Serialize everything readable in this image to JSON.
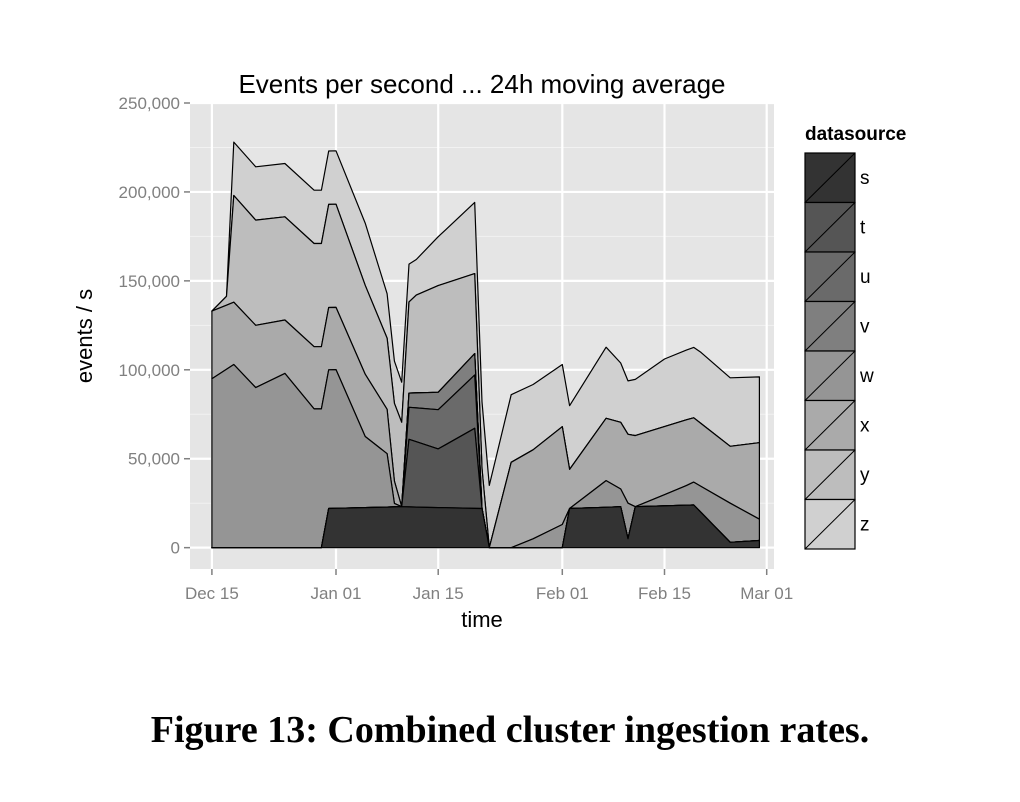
{
  "figure": {
    "caption": "Figure 13: Combined cluster ingestion rates."
  },
  "chart_data": {
    "type": "area",
    "stacked": true,
    "title": "Events per second ... 24h moving average",
    "xlabel": "time",
    "ylabel": "events / s",
    "x_range": [
      "2012-12-12",
      "2013-03-02"
    ],
    "ylim": [
      -12000,
      250000
    ],
    "x_ticks": [
      {
        "date": "2012-12-15",
        "label": "Dec 15"
      },
      {
        "date": "2013-01-01",
        "label": "Jan 01"
      },
      {
        "date": "2013-01-15",
        "label": "Jan 15"
      },
      {
        "date": "2013-02-01",
        "label": "Feb 01"
      },
      {
        "date": "2013-02-15",
        "label": "Feb 15"
      },
      {
        "date": "2013-03-01",
        "label": "Mar 01"
      }
    ],
    "y_ticks": [
      {
        "value": 0,
        "label": "0"
      },
      {
        "value": 50000,
        "label": "50,000"
      },
      {
        "value": 100000,
        "label": "100,000"
      },
      {
        "value": 150000,
        "label": "150,000"
      },
      {
        "value": 200000,
        "label": "200,000"
      },
      {
        "value": 250000,
        "label": "250,000"
      }
    ],
    "grid": true,
    "legend": {
      "title": "datasource",
      "position": "right",
      "entries": [
        {
          "label": "s",
          "color": "#333333"
        },
        {
          "label": "t",
          "color": "#555555"
        },
        {
          "label": "u",
          "color": "#6a6a6a"
        },
        {
          "label": "v",
          "color": "#7f7f7f"
        },
        {
          "label": "w",
          "color": "#959595"
        },
        {
          "label": "x",
          "color": "#aaaaaa"
        },
        {
          "label": "y",
          "color": "#bdbdbd"
        },
        {
          "label": "z",
          "color": "#d0d0d0"
        }
      ]
    },
    "series": [
      {
        "name": "s",
        "values": [
          {
            "x": "2012-12-15",
            "y": 0
          },
          {
            "x": "2012-12-30",
            "y": 0
          },
          {
            "x": "2012-12-31",
            "y": 22000
          },
          {
            "x": "2013-01-10",
            "y": 23000
          },
          {
            "x": "2013-01-21",
            "y": 22000
          },
          {
            "x": "2013-01-22",
            "y": 0
          },
          {
            "x": "2013-02-01",
            "y": 0
          },
          {
            "x": "2013-02-02",
            "y": 22000
          },
          {
            "x": "2013-02-09",
            "y": 23000
          },
          {
            "x": "2013-02-10",
            "y": 5000
          },
          {
            "x": "2013-02-11",
            "y": 23000
          },
          {
            "x": "2013-02-19",
            "y": 24000
          },
          {
            "x": "2013-02-24",
            "y": 3000
          },
          {
            "x": "2013-02-28",
            "y": 4000
          }
        ]
      },
      {
        "name": "t",
        "values": [
          {
            "x": "2012-12-15",
            "y": 0
          },
          {
            "x": "2013-01-10",
            "y": 0
          },
          {
            "x": "2013-01-11",
            "y": 38000
          },
          {
            "x": "2013-01-15",
            "y": 33000
          },
          {
            "x": "2013-01-20",
            "y": 45000
          },
          {
            "x": "2013-01-21",
            "y": 0
          },
          {
            "x": "2013-02-28",
            "y": 0
          }
        ]
      },
      {
        "name": "u",
        "values": [
          {
            "x": "2012-12-15",
            "y": 0
          },
          {
            "x": "2013-01-10",
            "y": 0
          },
          {
            "x": "2013-01-11",
            "y": 18000
          },
          {
            "x": "2013-01-15",
            "y": 22000
          },
          {
            "x": "2013-01-20",
            "y": 30000
          },
          {
            "x": "2013-01-21",
            "y": 0
          },
          {
            "x": "2013-02-28",
            "y": 0
          }
        ]
      },
      {
        "name": "v",
        "values": [
          {
            "x": "2012-12-15",
            "y": 0
          },
          {
            "x": "2013-01-10",
            "y": 0
          },
          {
            "x": "2013-01-11",
            "y": 8000
          },
          {
            "x": "2013-01-20",
            "y": 12000
          },
          {
            "x": "2013-01-21",
            "y": 0
          },
          {
            "x": "2013-02-28",
            "y": 0
          }
        ]
      },
      {
        "name": "w",
        "values": [
          {
            "x": "2012-12-15",
            "y": 95000
          },
          {
            "x": "2012-12-18",
            "y": 103000
          },
          {
            "x": "2012-12-21",
            "y": 90000
          },
          {
            "x": "2012-12-25",
            "y": 98000
          },
          {
            "x": "2012-12-29",
            "y": 78000
          },
          {
            "x": "2013-01-01",
            "y": 78000
          },
          {
            "x": "2013-01-05",
            "y": 40000
          },
          {
            "x": "2013-01-08",
            "y": 30000
          },
          {
            "x": "2013-01-09",
            "y": 2000
          },
          {
            "x": "2013-01-10",
            "y": 0
          },
          {
            "x": "2013-01-22",
            "y": 0
          },
          {
            "x": "2013-01-25",
            "y": 0
          },
          {
            "x": "2013-01-28",
            "y": 5000
          },
          {
            "x": "2013-02-01",
            "y": 13000
          },
          {
            "x": "2013-02-02",
            "y": 0
          },
          {
            "x": "2013-02-07",
            "y": 15000
          },
          {
            "x": "2013-02-09",
            "y": 10000
          },
          {
            "x": "2013-02-10",
            "y": 20000
          },
          {
            "x": "2013-02-11",
            "y": 0
          },
          {
            "x": "2013-02-18",
            "y": 11000
          },
          {
            "x": "2013-02-24",
            "y": 22000
          },
          {
            "x": "2013-02-28",
            "y": 12000
          }
        ]
      },
      {
        "name": "x",
        "values": [
          {
            "x": "2012-12-15",
            "y": 38000
          },
          {
            "x": "2012-12-18",
            "y": 35000
          },
          {
            "x": "2012-12-21",
            "y": 35000
          },
          {
            "x": "2012-12-25",
            "y": 30000
          },
          {
            "x": "2012-12-29",
            "y": 35000
          },
          {
            "x": "2013-01-01",
            "y": 35000
          },
          {
            "x": "2013-01-05",
            "y": 35000
          },
          {
            "x": "2013-01-08",
            "y": 25000
          },
          {
            "x": "2013-01-10",
            "y": 0
          },
          {
            "x": "2013-01-22",
            "y": 0
          },
          {
            "x": "2013-01-25",
            "y": 48000
          },
          {
            "x": "2013-01-28",
            "y": 50000
          },
          {
            "x": "2013-02-01",
            "y": 55000
          },
          {
            "x": "2013-02-02",
            "y": 22000
          },
          {
            "x": "2013-02-07",
            "y": 35000
          },
          {
            "x": "2013-02-11",
            "y": 40000
          },
          {
            "x": "2013-02-18",
            "y": 37000
          },
          {
            "x": "2013-02-24",
            "y": 32000
          },
          {
            "x": "2013-02-28",
            "y": 43000
          }
        ]
      },
      {
        "name": "y",
        "values": [
          {
            "x": "2012-12-15",
            "y": 0
          },
          {
            "x": "2012-12-17",
            "y": 5000
          },
          {
            "x": "2012-12-18",
            "y": 60000
          },
          {
            "x": "2012-12-25",
            "y": 58000
          },
          {
            "x": "2013-01-01",
            "y": 58000
          },
          {
            "x": "2013-01-05",
            "y": 50000
          },
          {
            "x": "2013-01-08",
            "y": 40000
          },
          {
            "x": "2013-01-12",
            "y": 55000
          },
          {
            "x": "2013-01-15",
            "y": 60000
          },
          {
            "x": "2013-01-20",
            "y": 45000
          },
          {
            "x": "2013-01-22",
            "y": 0
          },
          {
            "x": "2013-01-25",
            "y": 0
          }
        ]
      },
      {
        "name": "z",
        "values": [
          {
            "x": "2012-12-15",
            "y": 0
          },
          {
            "x": "2012-12-17",
            "y": 0
          },
          {
            "x": "2012-12-18",
            "y": 30000
          },
          {
            "x": "2012-12-25",
            "y": 30000
          },
          {
            "x": "2013-01-01",
            "y": 30000
          },
          {
            "x": "2013-01-05",
            "y": 35000
          },
          {
            "x": "2013-01-08",
            "y": 25000
          },
          {
            "x": "2013-01-12",
            "y": 20000
          },
          {
            "x": "2013-01-16",
            "y": 30000
          },
          {
            "x": "2013-01-20",
            "y": 40000
          },
          {
            "x": "2013-01-22",
            "y": 35000
          },
          {
            "x": "2013-01-25",
            "y": 38000
          },
          {
            "x": "2013-02-01",
            "y": 35000
          },
          {
            "x": "2013-02-07",
            "y": 40000
          },
          {
            "x": "2013-02-10",
            "y": 30000
          },
          {
            "x": "2013-02-15",
            "y": 38000
          },
          {
            "x": "2013-02-20",
            "y": 40000
          },
          {
            "x": "2013-02-28",
            "y": 37000
          }
        ]
      }
    ]
  }
}
